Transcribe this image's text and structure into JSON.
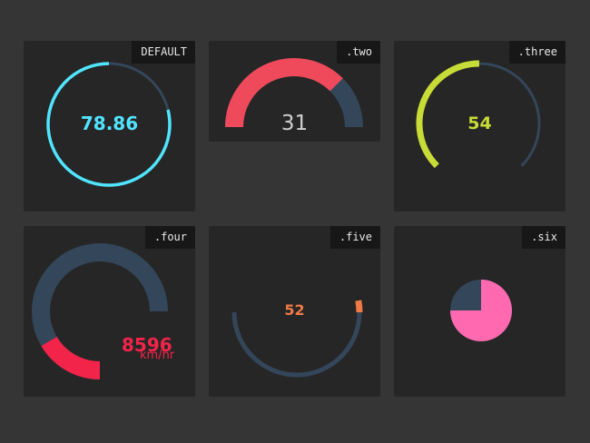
{
  "colors": {
    "background": "#353535",
    "card": "#262626",
    "track": "#34465a",
    "cyan": "#51e4ff",
    "red": "#ef4a5b",
    "lime": "#c8dc37",
    "crimson": "#f22449",
    "orange": "#f07a48",
    "pink": "#ff69b0"
  },
  "gauges": [
    {
      "tag": "DEFAULT",
      "value": "78.86",
      "level": 0.7886
    },
    {
      "tag": ".two",
      "value": "31",
      "level": 0.75
    },
    {
      "tag": ".three",
      "value": "54",
      "level": 0.5
    },
    {
      "tag": ".four",
      "value": "8596",
      "unit": "km/hr",
      "level": 0.22
    },
    {
      "tag": ".five",
      "value": "52",
      "level": 0.06
    },
    {
      "tag": ".six",
      "level": 0.75
    }
  ]
}
